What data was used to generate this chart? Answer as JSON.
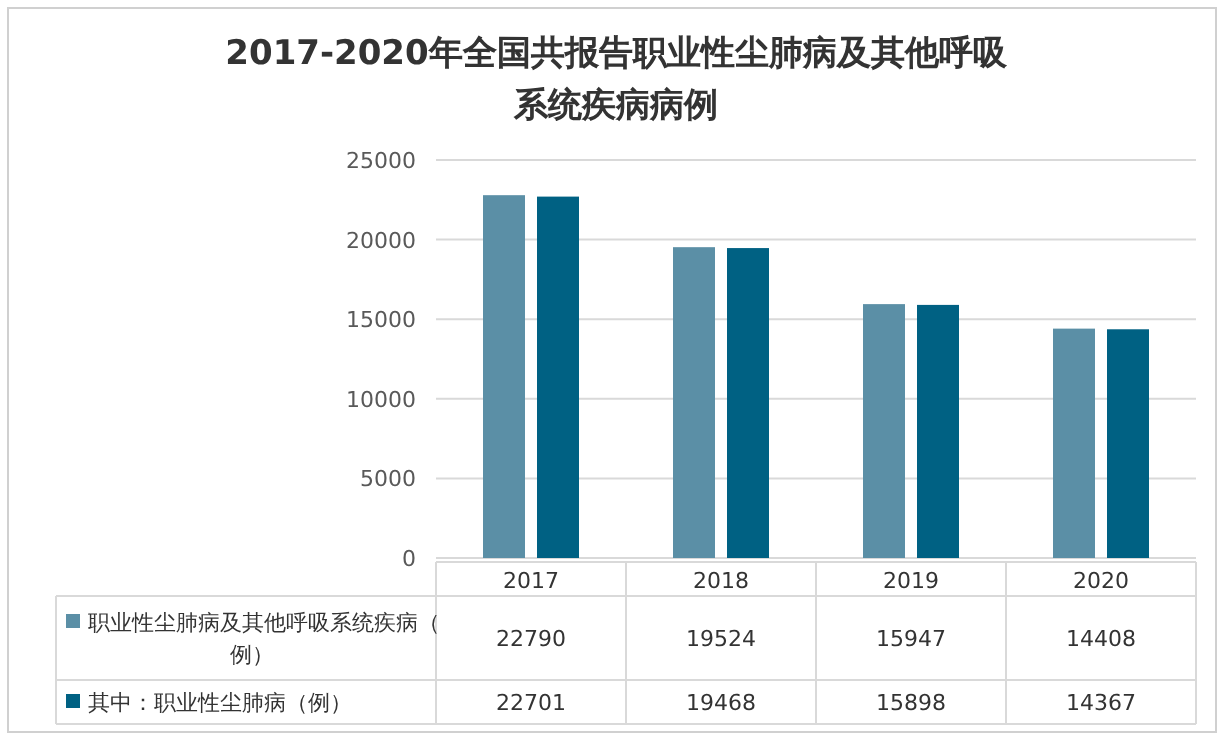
{
  "chart_data": {
    "type": "bar",
    "title": "2017-2020年全国共报告职业性尘肺病及其他呼吸系统疾病病例",
    "categories": [
      "2017",
      "2018",
      "2019",
      "2020"
    ],
    "series": [
      {
        "name": "职业性尘肺病及其他呼吸系统疾病（例）",
        "color": "#5b8fa6",
        "values": [
          22790,
          19524,
          15947,
          14408
        ]
      },
      {
        "name": "其中：职业性尘肺病（例）",
        "color": "#006183",
        "values": [
          22701,
          19468,
          15898,
          14367
        ]
      }
    ],
    "ylim": [
      0,
      25000
    ],
    "yticks": [
      0,
      5000,
      10000,
      15000,
      20000,
      25000
    ],
    "grid": "y",
    "data_labels": true,
    "legend": "bottom"
  }
}
